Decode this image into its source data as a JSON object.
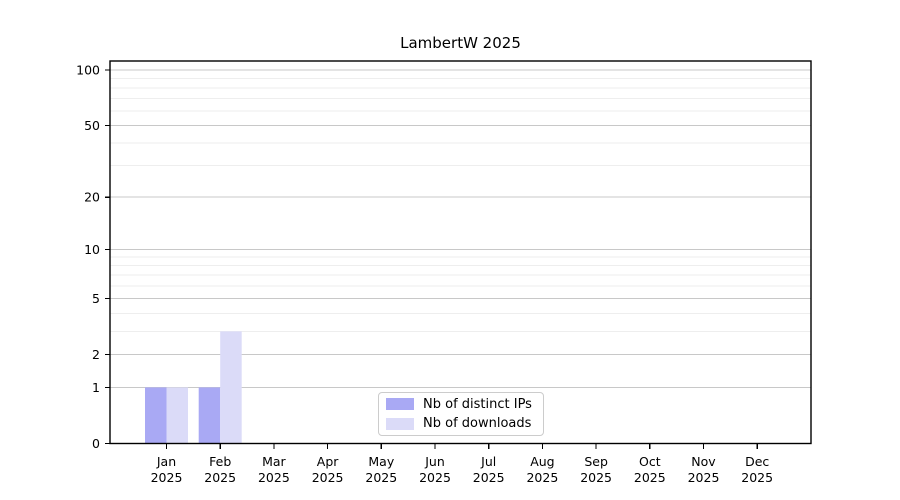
{
  "title": "LambertW 2025",
  "chart_data": {
    "type": "bar",
    "title": "LambertW 2025",
    "categories": [
      {
        "month": "Jan",
        "year": "2025"
      },
      {
        "month": "Feb",
        "year": "2025"
      },
      {
        "month": "Mar",
        "year": "2025"
      },
      {
        "month": "Apr",
        "year": "2025"
      },
      {
        "month": "May",
        "year": "2025"
      },
      {
        "month": "Jun",
        "year": "2025"
      },
      {
        "month": "Jul",
        "year": "2025"
      },
      {
        "month": "Aug",
        "year": "2025"
      },
      {
        "month": "Sep",
        "year": "2025"
      },
      {
        "month": "Oct",
        "year": "2025"
      },
      {
        "month": "Nov",
        "year": "2025"
      },
      {
        "month": "Dec",
        "year": "2025"
      }
    ],
    "series": [
      {
        "name": "Nb of distinct IPs",
        "color": "#a9a9f4",
        "values": [
          1,
          1,
          0,
          0,
          0,
          0,
          0,
          0,
          0,
          0,
          0,
          0
        ]
      },
      {
        "name": "Nb of downloads",
        "color": "#dbdbf8",
        "values": [
          1,
          3,
          0,
          0,
          0,
          0,
          0,
          0,
          0,
          0,
          0,
          0
        ]
      }
    ],
    "xlabel": "",
    "ylabel": "",
    "yscale": "log1p",
    "ylim": [
      0,
      112
    ],
    "ytick_values": [
      0,
      1,
      2,
      5,
      10,
      20,
      50,
      100
    ],
    "ytick_labels": [
      "0",
      "1",
      "2",
      "5",
      "10",
      "20",
      "50",
      "100"
    ],
    "minor_ytick_values": [
      3,
      4,
      6,
      7,
      8,
      9,
      30,
      40,
      60,
      70,
      80,
      90
    ],
    "grid": "horizontal",
    "legend_position": "lower-center-inside"
  },
  "colors": {
    "background": "#ffffff",
    "axis_frame": "#000000",
    "tick_text": "#000000",
    "major_grid": "#c8c8c8",
    "minor_grid": "#eeeeee",
    "legend_border": "#cccccc"
  }
}
